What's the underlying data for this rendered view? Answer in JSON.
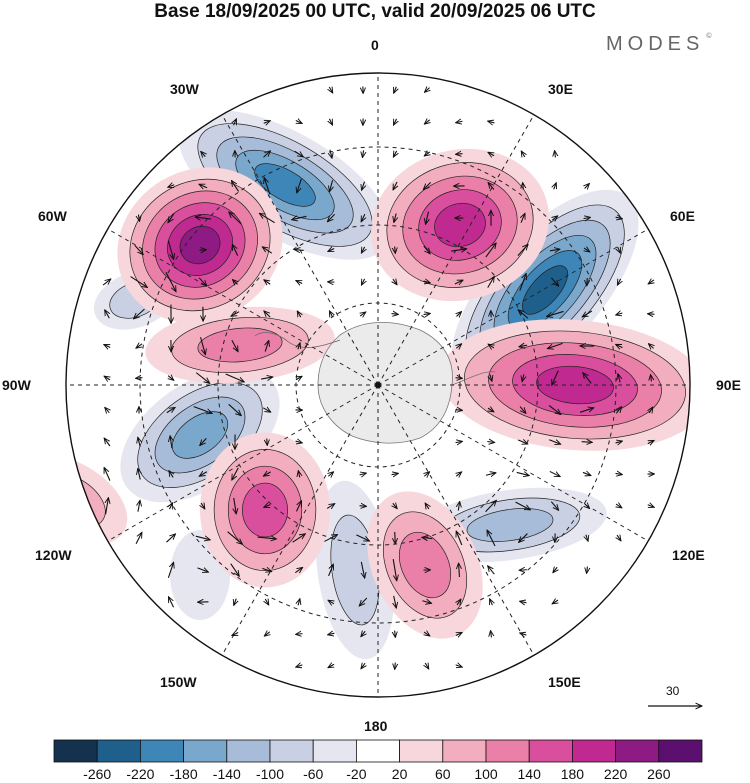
{
  "title": "Base 18/09/2025 00 UTC, valid 20/09/2025 06 UTC",
  "brand": "MODES",
  "brand_mark": "©",
  "longitude_labels": {
    "lon_0": "0",
    "lon_30e": "30E",
    "lon_60e": "60E",
    "lon_90e": "90E",
    "lon_120e": "120E",
    "lon_150e": "150E",
    "lon_180": "180",
    "lon_150w": "150W",
    "lon_120w": "120W",
    "lon_90w": "90W",
    "lon_60w": "60W",
    "lon_30w": "30W"
  },
  "reference_vector": {
    "label": "30"
  },
  "colorbar": {
    "labels": [
      "-260",
      "-220",
      "-180",
      "-140",
      "-100",
      "-60",
      "-20",
      "20",
      "60",
      "100",
      "140",
      "180",
      "220",
      "260"
    ],
    "colors": [
      "#14324d",
      "#1f5f8b",
      "#3f86b8",
      "#7aa7cc",
      "#a7bcd8",
      "#c9d0e3",
      "#e6e6f0",
      "#ffffff",
      "#f7d7dc",
      "#f2aebe",
      "#ea7fa8",
      "#d94e9d",
      "#c0298f",
      "#8e1a84",
      "#5b0f6e"
    ]
  },
  "anomaly_centers": [
    {
      "sign": "neg",
      "value": -200
    },
    {
      "sign": "neg",
      "value": -240
    },
    {
      "sign": "neg",
      "value": -160
    },
    {
      "sign": "neg",
      "value": -120
    },
    {
      "sign": "neg",
      "value": -110
    },
    {
      "sign": "neg",
      "value": -90
    },
    {
      "sign": "neg",
      "value": -70
    },
    {
      "sign": "pos",
      "value": 200
    },
    {
      "sign": "pos",
      "value": 220
    },
    {
      "sign": "pos",
      "value": 240
    },
    {
      "sign": "pos",
      "value": 180
    },
    {
      "sign": "pos",
      "value": 150
    },
    {
      "sign": "pos",
      "value": 130
    },
    {
      "sign": "pos",
      "value": 110
    }
  ]
}
